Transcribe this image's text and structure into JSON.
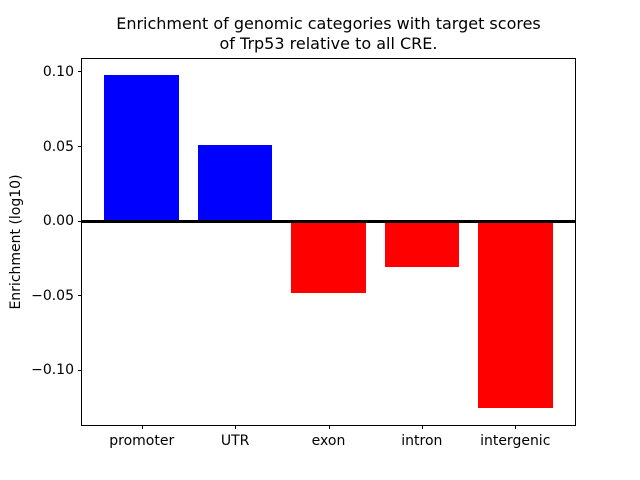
{
  "figure": {
    "background": "#ffffff",
    "text_color": "#000000",
    "spine_color": "#000000"
  },
  "chart_data": {
    "type": "bar",
    "title": "Enrichment of genomic categories with target scores\nof Trp53 relative to all CRE.",
    "xlabel": "",
    "ylabel": "Enrichment (log10)",
    "categories": [
      "promoter",
      "UTR",
      "exon",
      "intron",
      "intergenic"
    ],
    "values": [
      0.098,
      0.051,
      -0.048,
      -0.031,
      -0.125
    ],
    "bar_colors": {
      "positive": "#0000ff",
      "negative": "#ff0000"
    },
    "bar_width": 0.8,
    "xlim": [
      -0.64,
      4.64
    ],
    "ylim": [
      -0.1367,
      0.1087
    ],
    "yticks": [
      0.1,
      0.05,
      0.0,
      -0.05,
      -0.1
    ],
    "ytick_labels": [
      "0.10",
      "0.05",
      "0.00",
      "−0.05",
      "−0.10"
    ],
    "zero_line": {
      "value": 0,
      "color": "#000000",
      "thickness_px": 3
    },
    "grid": false,
    "legend": null
  }
}
